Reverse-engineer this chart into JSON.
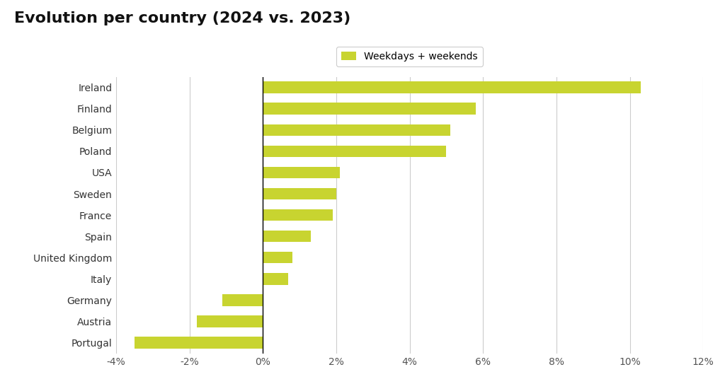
{
  "title": "Evolution per country (2024 vs. 2023)",
  "legend_label": "Weekdays + weekends",
  "bar_color": "#c8d430",
  "background_color": "#ffffff",
  "categories": [
    "Ireland",
    "Finland",
    "Belgium",
    "Poland",
    "USA",
    "Sweden",
    "France",
    "Spain",
    "United Kingdom",
    "Italy",
    "Germany",
    "Austria",
    "Portugal"
  ],
  "values": [
    10.3,
    5.8,
    5.1,
    5.0,
    2.1,
    2.0,
    1.9,
    1.3,
    0.8,
    0.7,
    -1.1,
    -1.8,
    -3.5
  ],
  "xlim": [
    -4,
    12
  ],
  "xticks": [
    -4,
    -2,
    0,
    2,
    4,
    6,
    8,
    10,
    12
  ],
  "xtick_labels": [
    "-4%",
    "-2%",
    "0%",
    "2%",
    "4%",
    "6%",
    "8%",
    "10%",
    "12%"
  ],
  "grid_color": "#cccccc",
  "title_fontsize": 16,
  "tick_fontsize": 10,
  "legend_fontsize": 10,
  "bar_height": 0.55
}
